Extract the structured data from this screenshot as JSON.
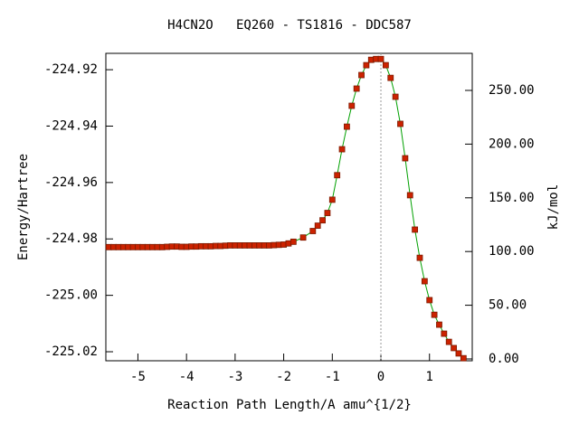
{
  "chart_data": {
    "type": "line",
    "title": "H4CN2O   EQ260 - TS1816 - DDC587",
    "xlabel": "Reaction Path Length/A amu^{1/2}",
    "ylabel": "Energy/Hartree",
    "y2label": "kJ/mol",
    "xlim": [
      -5.66,
      1.88
    ],
    "ylim": [
      -225.0232,
      -224.9142
    ],
    "y2lim": [
      -1.7,
      284.5
    ],
    "xticks": [
      -5,
      -4,
      -3,
      -2,
      -1,
      0,
      1
    ],
    "yticks": [
      -224.92,
      -224.94,
      -224.96,
      -224.98,
      {
        "value": -225,
        "label": "-225.00"
      },
      -225.02
    ],
    "y2ticks": [
      {
        "value": 0,
        "label": "0.00"
      },
      {
        "value": 50,
        "label": "50.00"
      },
      {
        "value": 100,
        "label": "100.00"
      },
      {
        "value": 150,
        "label": "150.00"
      },
      {
        "value": 200,
        "label": "200.00"
      },
      {
        "value": 250,
        "label": "250.00"
      }
    ],
    "vline": 0,
    "line_color": "#00a000",
    "marker_color": "#cc2200",
    "x": [
      -5.6,
      -5.5,
      -5.4,
      -5.3,
      -5.2,
      -5.1,
      -5.0,
      -4.9,
      -4.8,
      -4.7,
      -4.6,
      -4.5,
      -4.4,
      -4.3,
      -4.2,
      -4.1,
      -4.0,
      -3.9,
      -3.8,
      -3.7,
      -3.6,
      -3.5,
      -3.4,
      -3.3,
      -3.2,
      -3.1,
      -3.0,
      -2.9,
      -2.8,
      -2.7,
      -2.6,
      -2.5,
      -2.4,
      -2.3,
      -2.2,
      -2.1,
      -2.0,
      -1.9,
      -1.8,
      -1.6,
      -1.4,
      -1.3,
      -1.2,
      -1.1,
      -1.0,
      -0.9,
      -0.8,
      -0.7,
      -0.6,
      -0.5,
      -0.4,
      -0.3,
      -0.2,
      -0.1,
      0.0,
      0.1,
      0.2,
      0.3,
      0.4,
      0.5,
      0.6,
      0.7,
      0.8,
      0.9,
      1.0,
      1.1,
      1.2,
      1.3,
      1.4,
      1.5,
      1.6,
      1.7
    ],
    "values": [
      -224.9829,
      -224.9829,
      -224.9829,
      -224.9829,
      -224.9829,
      -224.9829,
      -224.9829,
      -224.9829,
      -224.9829,
      -224.9829,
      -224.9829,
      -224.9829,
      -224.9828,
      -224.9827,
      -224.9827,
      -224.9828,
      -224.9828,
      -224.9827,
      -224.9827,
      -224.9826,
      -224.9826,
      -224.9826,
      -224.9825,
      -224.9825,
      -224.9824,
      -224.9823,
      -224.9823,
      -224.9823,
      -224.9823,
      -224.9823,
      -224.9823,
      -224.9823,
      -224.9823,
      -224.9823,
      -224.9822,
      -224.9821,
      -224.982,
      -224.9816,
      -224.981,
      -224.9795,
      -224.9772,
      -224.9753,
      -224.9734,
      -224.9708,
      -224.9661,
      -224.9574,
      -224.9482,
      -224.9402,
      -224.9328,
      -224.9267,
      -224.9219,
      -224.9184,
      -224.9165,
      -224.9162,
      -224.9162,
      -224.9184,
      -224.9229,
      -224.9296,
      -224.9392,
      -224.9514,
      -224.9645,
      -224.9767,
      -224.9867,
      -224.995,
      -225.0017,
      -225.0069,
      -225.0104,
      -225.0136,
      -225.0165,
      -225.0187,
      -225.0206,
      -225.0223
    ]
  }
}
